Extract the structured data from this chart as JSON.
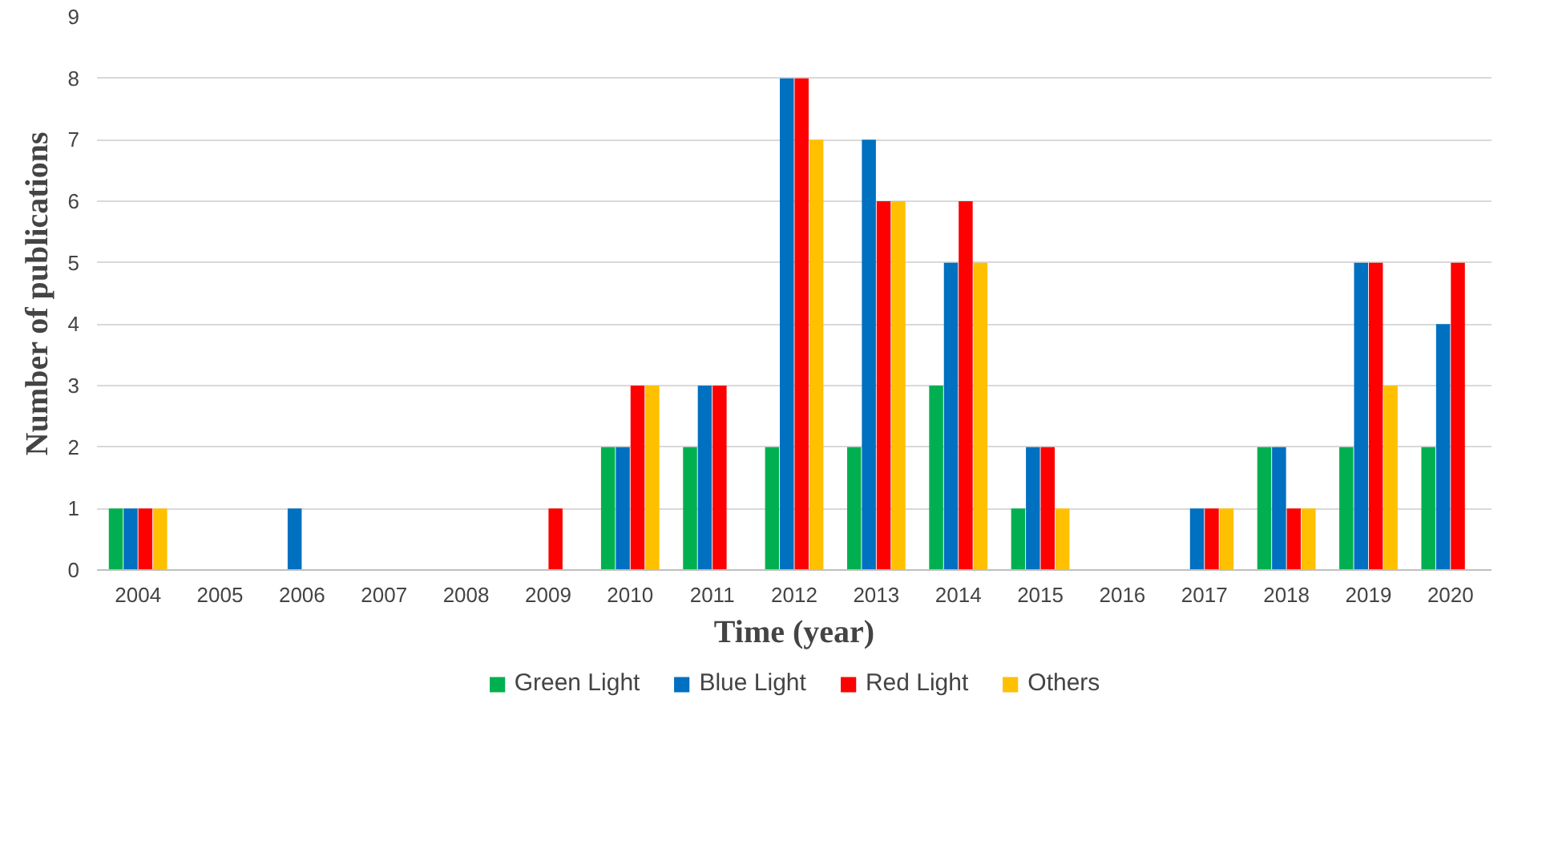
{
  "chart_data": {
    "type": "bar",
    "xlabel": "Time (year)",
    "ylabel": "Number of publications",
    "categories": [
      "2004",
      "2005",
      "2006",
      "2007",
      "2008",
      "2009",
      "2010",
      "2011",
      "2012",
      "2013",
      "2014",
      "2015",
      "2016",
      "2017",
      "2018",
      "2019",
      "2020"
    ],
    "series": [
      {
        "name": "Green Light",
        "color": "#00b050",
        "values": [
          1,
          0,
          0,
          0,
          0,
          0,
          2,
          2,
          2,
          2,
          3,
          1,
          0,
          0,
          2,
          2,
          2
        ]
      },
      {
        "name": "Blue Light",
        "color": "#0070c0",
        "values": [
          1,
          0,
          1,
          0,
          0,
          0,
          2,
          3,
          8,
          7,
          5,
          2,
          0,
          1,
          2,
          5,
          4
        ]
      },
      {
        "name": "Red Light",
        "color": "#ff0000",
        "values": [
          1,
          0,
          0,
          0,
          0,
          1,
          3,
          3,
          8,
          6,
          6,
          2,
          0,
          1,
          1,
          5,
          5
        ]
      },
      {
        "name": "Others",
        "color": "#ffc000",
        "values": [
          1,
          0,
          0,
          0,
          0,
          0,
          3,
          0,
          7,
          6,
          5,
          1,
          0,
          1,
          1,
          3,
          0
        ]
      }
    ],
    "ylim": [
      0,
      9
    ],
    "yticks": [
      0,
      1,
      2,
      3,
      4,
      5,
      6,
      7,
      8,
      9
    ],
    "grid": "y",
    "legend": "bottom"
  }
}
